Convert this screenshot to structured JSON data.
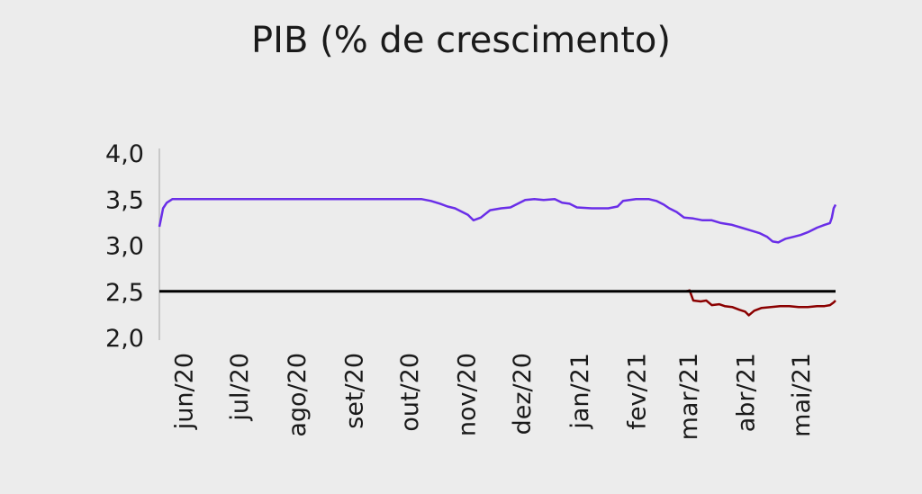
{
  "chart_data": {
    "type": "line",
    "title": "PIB (% de crescimento)",
    "xlabel": "",
    "ylabel": "",
    "ylim": [
      2.0,
      4.0
    ],
    "y_ticks": [
      "4,0",
      "3,5",
      "3,0",
      "2,5",
      "2,0"
    ],
    "y_tick_values": [
      4.0,
      3.5,
      3.0,
      2.5,
      2.0
    ],
    "x_ticks": [
      "jun/20",
      "jul/20",
      "ago/20",
      "set/20",
      "out/20",
      "nov/20",
      "dez/20",
      "jan/21",
      "fev/21",
      "mar/21",
      "abr/21",
      "mai/21"
    ],
    "x_tick_values": [
      "2020-06-01",
      "2020-07-01",
      "2020-08-01",
      "2020-09-01",
      "2020-10-01",
      "2020-11-01",
      "2020-12-01",
      "2021-01-01",
      "2021-02-01",
      "2021-03-01",
      "2021-04-01",
      "2021-05-01"
    ],
    "xlim": [
      "2020-05-19",
      "2021-05-20"
    ],
    "grid": false,
    "legend": "none",
    "reference_line": {
      "y": 2.5,
      "color": "#000000"
    },
    "series": [
      {
        "color": "#6a2ee8",
        "points": [
          [
            "2020-05-19",
            3.2
          ],
          [
            "2020-05-20",
            3.3
          ],
          [
            "2020-05-21",
            3.4
          ],
          [
            "2020-05-23",
            3.46
          ],
          [
            "2020-05-26",
            3.5
          ],
          [
            "2020-06-15",
            3.5
          ],
          [
            "2020-07-15",
            3.5
          ],
          [
            "2020-08-15",
            3.5
          ],
          [
            "2020-09-15",
            3.5
          ],
          [
            "2020-10-08",
            3.5
          ],
          [
            "2020-10-13",
            3.48
          ],
          [
            "2020-10-18",
            3.45
          ],
          [
            "2020-10-22",
            3.42
          ],
          [
            "2020-10-26",
            3.4
          ],
          [
            "2020-10-30",
            3.36
          ],
          [
            "2020-11-02",
            3.33
          ],
          [
            "2020-11-05",
            3.27
          ],
          [
            "2020-11-09",
            3.3
          ],
          [
            "2020-11-14",
            3.38
          ],
          [
            "2020-11-20",
            3.4
          ],
          [
            "2020-11-25",
            3.41
          ],
          [
            "2020-11-29",
            3.45
          ],
          [
            "2020-12-03",
            3.49
          ],
          [
            "2020-12-08",
            3.5
          ],
          [
            "2020-12-13",
            3.49
          ],
          [
            "2020-12-19",
            3.5
          ],
          [
            "2020-12-23",
            3.46
          ],
          [
            "2020-12-27",
            3.45
          ],
          [
            "2020-12-31",
            3.41
          ],
          [
            "2021-01-08",
            3.4
          ],
          [
            "2021-01-17",
            3.4
          ],
          [
            "2021-01-22",
            3.42
          ],
          [
            "2021-01-25",
            3.48
          ],
          [
            "2021-02-01",
            3.5
          ],
          [
            "2021-02-08",
            3.5
          ],
          [
            "2021-02-12",
            3.48
          ],
          [
            "2021-02-16",
            3.44
          ],
          [
            "2021-02-19",
            3.4
          ],
          [
            "2021-02-23",
            3.36
          ],
          [
            "2021-02-27",
            3.3
          ],
          [
            "2021-03-04",
            3.29
          ],
          [
            "2021-03-09",
            3.27
          ],
          [
            "2021-03-14",
            3.27
          ],
          [
            "2021-03-19",
            3.24
          ],
          [
            "2021-03-25",
            3.22
          ],
          [
            "2021-03-30",
            3.19
          ],
          [
            "2021-04-04",
            3.16
          ],
          [
            "2021-04-09",
            3.13
          ],
          [
            "2021-04-13",
            3.09
          ],
          [
            "2021-04-16",
            3.04
          ],
          [
            "2021-04-19",
            3.03
          ],
          [
            "2021-04-23",
            3.07
          ],
          [
            "2021-04-27",
            3.09
          ],
          [
            "2021-05-01",
            3.11
          ],
          [
            "2021-05-05",
            3.14
          ],
          [
            "2021-05-10",
            3.19
          ],
          [
            "2021-05-14",
            3.22
          ],
          [
            "2021-05-17",
            3.24
          ],
          [
            "2021-05-18",
            3.3
          ],
          [
            "2021-05-19",
            3.4
          ],
          [
            "2021-05-20",
            3.44
          ]
        ]
      },
      {
        "color": "#8b0000",
        "points": [
          [
            "2021-02-28",
            2.5
          ],
          [
            "2021-03-02",
            2.51
          ],
          [
            "2021-03-04",
            2.4
          ],
          [
            "2021-03-08",
            2.39
          ],
          [
            "2021-03-11",
            2.4
          ],
          [
            "2021-03-14",
            2.35
          ],
          [
            "2021-03-18",
            2.36
          ],
          [
            "2021-03-21",
            2.34
          ],
          [
            "2021-03-25",
            2.33
          ],
          [
            "2021-03-29",
            2.3
          ],
          [
            "2021-04-01",
            2.28
          ],
          [
            "2021-04-03",
            2.24
          ],
          [
            "2021-04-06",
            2.29
          ],
          [
            "2021-04-10",
            2.32
          ],
          [
            "2021-04-15",
            2.33
          ],
          [
            "2021-04-20",
            2.34
          ],
          [
            "2021-04-25",
            2.34
          ],
          [
            "2021-04-30",
            2.33
          ],
          [
            "2021-05-05",
            2.33
          ],
          [
            "2021-05-10",
            2.34
          ],
          [
            "2021-05-14",
            2.34
          ],
          [
            "2021-05-17",
            2.35
          ],
          [
            "2021-05-19",
            2.38
          ],
          [
            "2021-05-20",
            2.4
          ]
        ]
      }
    ]
  }
}
